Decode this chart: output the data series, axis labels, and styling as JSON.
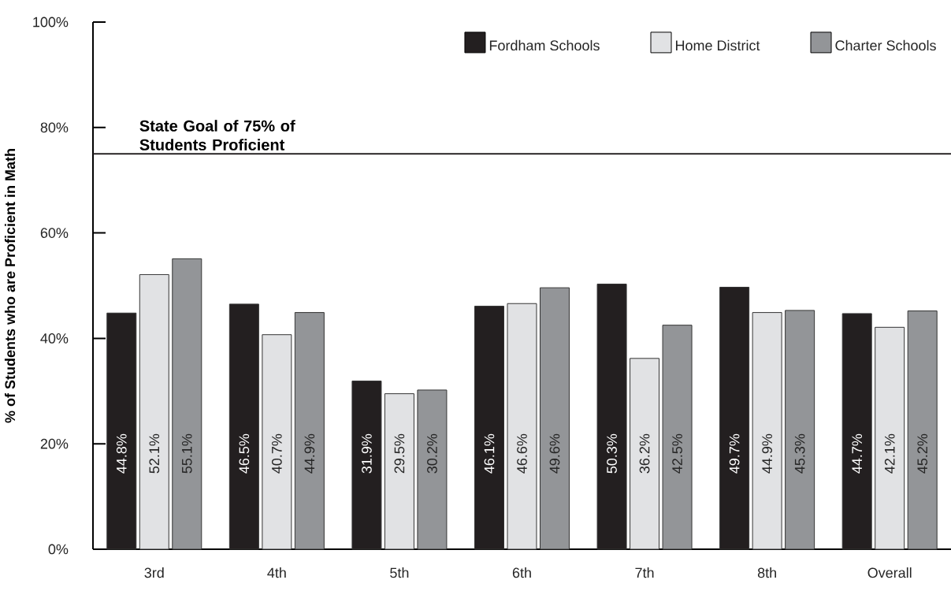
{
  "chart_data": {
    "type": "bar",
    "ylabel": "% of Students who are Proficient in Math",
    "categories": [
      "3rd",
      "4th",
      "5th",
      "6th",
      "7th",
      "8th",
      "Overall"
    ],
    "series": [
      {
        "name": "Fordham Schools",
        "color": "#231f20",
        "values": [
          44.8,
          46.5,
          31.9,
          46.1,
          50.3,
          49.7,
          44.7
        ],
        "value_labels": [
          "44.8%",
          "46.5%",
          "31.9%",
          "46.1%",
          "50.3%",
          "49.7%",
          "44.7%"
        ]
      },
      {
        "name": "Home District",
        "color": "#e1e2e4",
        "values": [
          52.1,
          40.7,
          29.5,
          46.6,
          36.2,
          44.9,
          42.1
        ],
        "value_labels": [
          "52.1%",
          "40.7%",
          "29.5%",
          "46.6%",
          "36.2%",
          "44.9%",
          "42.1%"
        ]
      },
      {
        "name": "Charter Schools",
        "color": "#939598",
        "values": [
          55.1,
          44.9,
          30.2,
          49.6,
          42.5,
          45.3,
          45.2
        ],
        "value_labels": [
          "55.1%",
          "44.9%",
          "30.2%",
          "49.6%",
          "42.5%",
          "45.3%",
          "45.2%"
        ]
      }
    ],
    "ylim": [
      0,
      100
    ],
    "yticks": [
      {
        "value": 0,
        "label": "0%"
      },
      {
        "value": 20,
        "label": "20%"
      },
      {
        "value": 40,
        "label": "40%"
      },
      {
        "value": 60,
        "label": "60%"
      },
      {
        "value": 80,
        "label": "80%"
      },
      {
        "value": 100,
        "label": "100%"
      }
    ],
    "ref_lines": [
      {
        "axis": "y",
        "value": 75,
        "label": "State Goal of 75% of Students Proficient",
        "color": "#231f20"
      }
    ],
    "legend": "top right"
  }
}
